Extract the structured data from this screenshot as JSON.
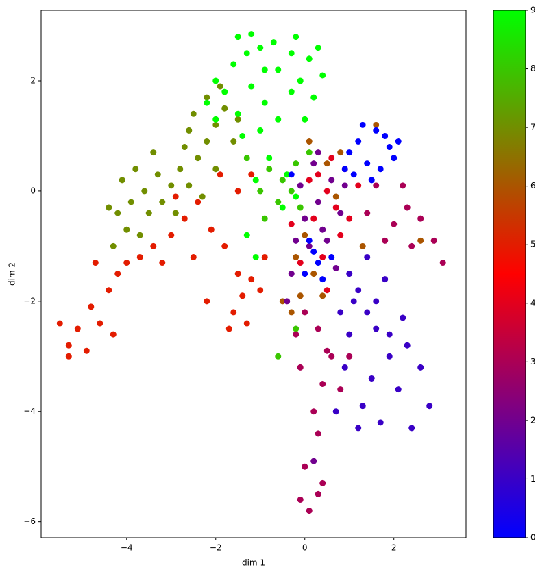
{
  "chart_data": {
    "type": "scatter",
    "xlabel": "dim 1",
    "ylabel": "dim 2",
    "x": [
      -3.0,
      -3.3,
      -2.8,
      -3.6,
      -3.9,
      -4.2,
      -4.4,
      -3.8,
      -3.2,
      -2.6,
      -2.4,
      -2.2,
      -2.0,
      -1.8,
      -2.5,
      -2.2,
      -2.7,
      -3.4,
      -4.0,
      -4.3,
      -3.7,
      -2.9,
      -1.6,
      -1.5,
      -2.0,
      -3.5,
      -2.3,
      -1.9,
      -4.1,
      -2.6,
      -5.3,
      -5.1,
      -4.9,
      -4.6,
      -4.3,
      -5.5,
      -5.3,
      -4.8,
      -4.4,
      -4.0,
      -4.2,
      -3.7,
      -3.4,
      -3.0,
      -2.7,
      -3.2,
      -2.4,
      -2.1,
      -1.8,
      -1.5,
      -1.4,
      -1.6,
      -1.2,
      -1.3,
      -1.0,
      -1.5,
      -1.9,
      -1.2,
      -2.5,
      -2.9,
      -1.7,
      -4.7,
      -0.9,
      -2.2,
      -0.5,
      -0.8,
      -0.2,
      -1.0,
      -0.6,
      -0.3,
      0.1,
      -0.9,
      -1.3,
      -0.1,
      -0.6,
      -0.2,
      -0.9,
      -1.2,
      -0.6,
      -0.3,
      -0.1,
      0.2,
      -1.5,
      -1.8,
      -1.6,
      -1.3,
      -1.0,
      -0.7,
      -0.3,
      0.1,
      0.4,
      -2.0,
      -2.2,
      -1.2,
      -1.5,
      -0.2,
      -0.6,
      -1.0,
      0.0,
      -1.4,
      -0.8,
      -0.4,
      -1.1,
      -1.3,
      -1.1,
      -0.5,
      -0.2,
      0.3,
      -0.9,
      -2.0,
      0.2,
      -0.2,
      0.5,
      0.8,
      -0.3,
      0.4,
      0.0,
      -0.5,
      1.3,
      1.6,
      0.7,
      0.1,
      2.6,
      -0.1,
      0.5,
      0.2,
      0.9,
      0.7,
      0.3,
      1.0,
      0.4,
      -0.3,
      0.6,
      1.2,
      0.1,
      0.8,
      -0.1,
      0.5,
      0.0,
      0.3,
      0.6,
      -0.2,
      0.4,
      0.2,
      -0.3,
      0.8,
      0.1,
      -0.4,
      0.5,
      0.9,
      -0.1,
      0.7,
      0.3,
      0.2,
      1.2,
      1.6,
      1.9,
      1.4,
      1.7,
      2.1,
      1.0,
      1.5,
      1.8,
      1.3,
      0.9,
      0.2,
      0.0,
      0.3,
      -0.3,
      0.1,
      0.6,
      1.1,
      2.0,
      0.4,
      2.0,
      2.3,
      1.8,
      2.6,
      2.4,
      1.6,
      2.9,
      2.2,
      3.1,
      1.4,
      0.3,
      0.0,
      0.5,
      -0.1,
      0.4,
      0.2,
      0.6,
      0.8,
      0.3,
      0.3,
      0.1,
      0.4,
      0.0,
      -0.1,
      1.0,
      -0.2,
      1.4,
      1.2,
      1.6,
      1.9,
      2.3,
      1.0,
      1.5,
      1.3,
      1.7,
      2.1,
      2.6,
      2.8,
      0.9,
      1.1,
      1.8,
      1.4,
      0.8,
      2.2,
      1.6,
      1.2,
      0.7,
      2.4,
      1.0,
      1.9
    ],
    "y": [
      0.1,
      0.3,
      0.4,
      0.0,
      -0.2,
      -0.4,
      -0.3,
      0.4,
      -0.2,
      0.1,
      0.6,
      0.9,
      1.2,
      1.5,
      1.4,
      1.7,
      0.8,
      0.7,
      -0.7,
      -1.0,
      -0.8,
      -0.4,
      0.9,
      1.3,
      0.4,
      -0.4,
      -0.1,
      1.9,
      0.2,
      1.1,
      -2.8,
      -2.5,
      -2.9,
      -2.4,
      -2.6,
      -2.4,
      -3.0,
      -2.1,
      -1.8,
      -1.3,
      -1.5,
      -1.2,
      -1.0,
      -0.8,
      -0.5,
      -1.3,
      -0.2,
      -0.7,
      -1.0,
      -1.5,
      -1.9,
      -2.2,
      -1.6,
      -2.4,
      -1.8,
      0.0,
      0.3,
      0.3,
      -1.2,
      -0.1,
      -2.5,
      -1.3,
      -1.2,
      -2.0,
      0.2,
      0.4,
      0.5,
      0.0,
      -0.2,
      0.0,
      0.7,
      -0.5,
      0.6,
      -0.3,
      -3.0,
      -2.5,
      1.6,
      1.9,
      2.2,
      1.8,
      2.0,
      1.7,
      1.4,
      1.8,
      2.3,
      2.5,
      2.6,
      2.7,
      2.5,
      2.4,
      2.1,
      2.0,
      1.6,
      2.85,
      2.8,
      2.8,
      1.3,
      1.1,
      1.3,
      1.0,
      0.6,
      0.3,
      0.2,
      -0.8,
      -1.2,
      -0.3,
      -0.1,
      2.6,
      2.2,
      1.3,
      -1.5,
      -1.2,
      0.5,
      0.7,
      -2.2,
      -1.9,
      -0.8,
      -2.0,
      -1.0,
      1.2,
      -0.1,
      0.9,
      -0.9,
      -1.9,
      0.0,
      -0.5,
      0.4,
      -0.3,
      0.3,
      -0.5,
      -1.2,
      -0.6,
      0.6,
      0.1,
      0.2,
      -0.8,
      -1.3,
      -1.8,
      -0.5,
      -0.2,
      0.2,
      -0.9,
      -0.7,
      0.5,
      -1.5,
      -0.4,
      -1.0,
      -2.0,
      -0.9,
      0.1,
      0.1,
      -1.4,
      0.7,
      -4.9,
      0.9,
      1.1,
      0.8,
      0.5,
      0.4,
      0.9,
      0.7,
      0.2,
      1.0,
      1.2,
      0.4,
      -1.1,
      -1.5,
      -1.3,
      0.3,
      -0.9,
      -1.2,
      0.3,
      0.6,
      -1.6,
      -0.6,
      -0.3,
      -0.9,
      -0.5,
      -1.0,
      0.1,
      -0.9,
      0.1,
      -1.3,
      -0.4,
      -2.5,
      -2.2,
      -2.9,
      -3.2,
      -3.5,
      -4.0,
      -3.0,
      -3.6,
      -4.4,
      -5.5,
      -5.8,
      -5.3,
      -5.0,
      -5.6,
      -3.0,
      -2.6,
      -2.2,
      -1.8,
      -2.5,
      -3.0,
      -2.8,
      -2.6,
      -3.4,
      -3.9,
      -4.2,
      -3.6,
      -3.2,
      -3.9,
      -3.2,
      -2.0,
      -1.6,
      -1.2,
      -2.2,
      -2.3,
      -2.0,
      -4.3,
      -4.0,
      -4.3,
      -1.5,
      -2.6
    ],
    "c": [
      7,
      7,
      7,
      7,
      7,
      7,
      7,
      7,
      7,
      7,
      7,
      7,
      7,
      7,
      7,
      7,
      7,
      7,
      7,
      7,
      7,
      7,
      7,
      7,
      7,
      7,
      7,
      7,
      7,
      7,
      5,
      5,
      5,
      5,
      5,
      5,
      5,
      5,
      5,
      5,
      5,
      5,
      5,
      5,
      5,
      5,
      5,
      5,
      5,
      5,
      5,
      5,
      5,
      5,
      5,
      5,
      5,
      5,
      5,
      5,
      5,
      5,
      5,
      5,
      8,
      8,
      8,
      8,
      8,
      8,
      8,
      8,
      8,
      8,
      8,
      8,
      9,
      9,
      9,
      9,
      9,
      9,
      9,
      9,
      9,
      9,
      9,
      9,
      9,
      9,
      9,
      9,
      9,
      9,
      9,
      9,
      9,
      9,
      9,
      9,
      9,
      9,
      9,
      9,
      9,
      9,
      9,
      9,
      9,
      9,
      6,
      6,
      6,
      6,
      6,
      6,
      6,
      6,
      6,
      6,
      6,
      6,
      6,
      6,
      4,
      4,
      4,
      4,
      4,
      4,
      4,
      4,
      4,
      4,
      4,
      4,
      4,
      4,
      2,
      2,
      2,
      2,
      2,
      2,
      2,
      2,
      2,
      2,
      2,
      2,
      2,
      2,
      2,
      2,
      0,
      0,
      0,
      0,
      0,
      0,
      0,
      0,
      0,
      0,
      0,
      0,
      0,
      0,
      0,
      0,
      0,
      0,
      0,
      0,
      3,
      3,
      3,
      3,
      3,
      3,
      3,
      3,
      3,
      3,
      3,
      3,
      3,
      3,
      3,
      3,
      3,
      3,
      3,
      3,
      3,
      3,
      3,
      3,
      3,
      3,
      1,
      1,
      1,
      1,
      1,
      1,
      1,
      1,
      1,
      1,
      1,
      1,
      1,
      1,
      1,
      1,
      1,
      1,
      1,
      1,
      1,
      1,
      1,
      1
    ],
    "colormap": [
      "#0000ff",
      "#ff0000",
      "#00ff00"
    ],
    "clim": [
      0,
      9
    ],
    "cticks": [
      0,
      1,
      2,
      3,
      4,
      5,
      6,
      7,
      8,
      9
    ],
    "xlim": [
      -5.92,
      3.62
    ],
    "ylim": [
      -6.29,
      3.28
    ],
    "xticks": [
      {
        "value": -4,
        "label": "−4"
      },
      {
        "value": -2,
        "label": "−2"
      },
      0,
      2
    ],
    "yticks": [
      {
        "value": -6,
        "label": "−6"
      },
      {
        "value": -4,
        "label": "−4"
      },
      {
        "value": -2,
        "label": "−2"
      },
      0,
      2
    ]
  }
}
